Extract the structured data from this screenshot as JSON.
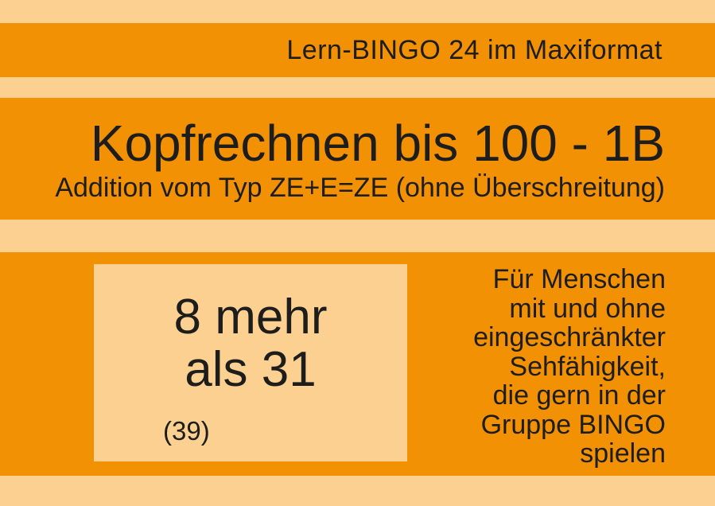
{
  "theme": {
    "orange": "#F29104",
    "light": "#FCD091",
    "ink": "#1D1D1B"
  },
  "header": {
    "series_label": "Lern-BINGO 24 im Maxiformat"
  },
  "title_block": {
    "title": "Kopfrechnen bis 100 - 1B",
    "subtitle": "Addition vom Typ ZE+E=ZE (ohne Überschreitung)"
  },
  "task_card": {
    "line1": "8 mehr",
    "line2": "als 31",
    "solution": "(39)"
  },
  "audience_note": {
    "lines": [
      "Für Menschen",
      "mit und ohne",
      "eingeschränkter",
      "Sehfähigkeit,",
      "die gern in der",
      "Gruppe BINGO",
      "spielen"
    ]
  }
}
